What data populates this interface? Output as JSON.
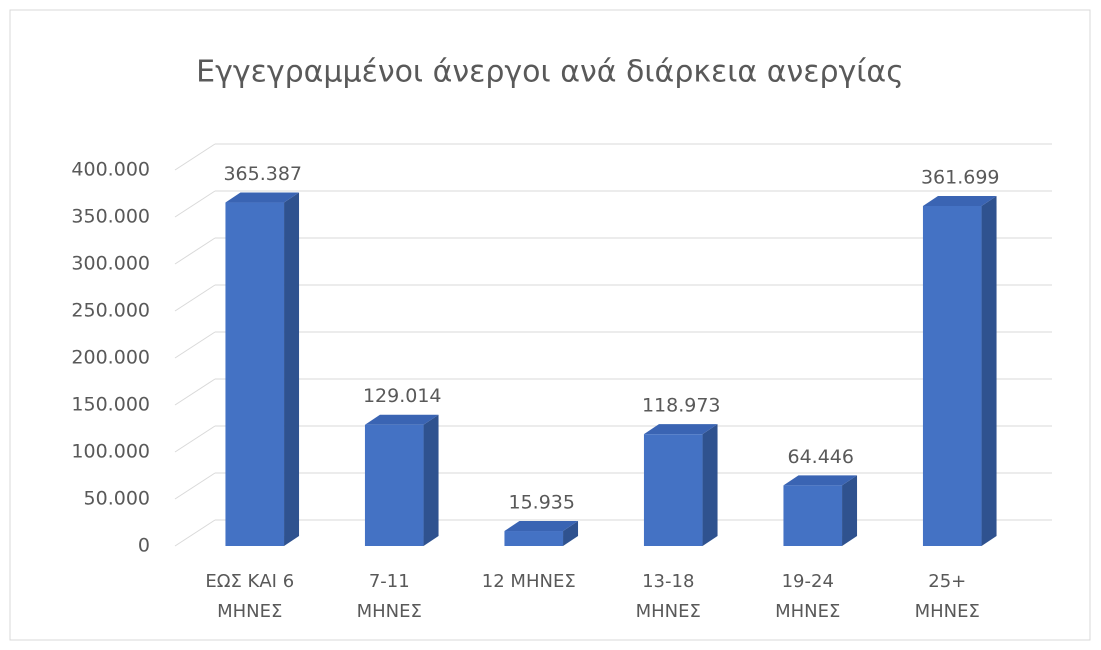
{
  "chart_data": {
    "type": "bar3d",
    "title": "Εγγεγραμμένοι άνεργοι ανά διάρκεια ανεργίας",
    "categories": [
      [
        "ΕΩΣ ΚΑΙ 6",
        "ΜΗΝΕΣ"
      ],
      [
        "7-11",
        "ΜΗΝΕΣ"
      ],
      [
        "12 ΜΗΝΕΣ"
      ],
      [
        "13-18",
        "ΜΗΝΕΣ"
      ],
      [
        "19-24",
        "ΜΗΝΕΣ"
      ],
      [
        "25+",
        "ΜΗΝΕΣ"
      ]
    ],
    "values": [
      365387,
      129014,
      15935,
      118973,
      64446,
      361699
    ],
    "value_labels": [
      "365.387",
      "129.014",
      "15.935",
      "118.973",
      "64.446",
      "361.699"
    ],
    "color": "#4472c4",
    "ylim": [
      0,
      400000
    ],
    "yticks": [
      0,
      {
        "value": 50000,
        "label": "50.000"
      },
      {
        "value": 100000,
        "label": "100.000"
      },
      {
        "value": 150000,
        "label": "150.000"
      },
      {
        "value": 200000,
        "label": "200.000"
      },
      {
        "value": 250000,
        "label": "250.000"
      },
      {
        "value": 300000,
        "label": "300.000"
      },
      {
        "value": 350000,
        "label": "350.000"
      },
      {
        "value": 400000,
        "label": "400.000"
      }
    ],
    "grid": true
  }
}
